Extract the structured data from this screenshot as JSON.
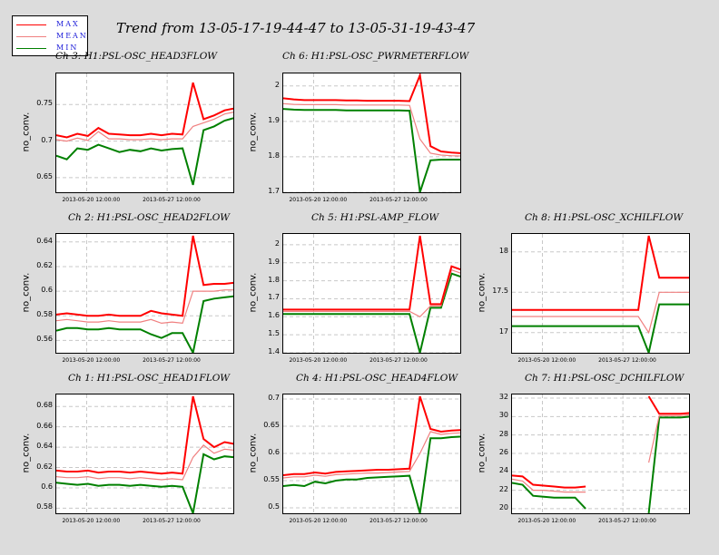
{
  "title": "Trend from 13-05-17-19-44-47 to 13-05-31-19-43-47",
  "legend": [
    {
      "label": "MAX",
      "color": "#ff0000"
    },
    {
      "label": "MEAN",
      "color": "#f08080"
    },
    {
      "label": "MIN",
      "color": "#008000"
    }
  ],
  "colors": {
    "max": "#ff0000",
    "mean": "#f08080",
    "min": "#008000",
    "grid": "#c8c8c8",
    "legend_text": "#1a1ad8"
  },
  "chart_data": [
    {
      "type": "line",
      "title": "Ch 3: H1:PSL-OSC_HEAD3FLOW",
      "ylabel": "no_conv.",
      "xticks": [
        "2013-05-20 12:00:00",
        "2013-05-27 12:00:00"
      ],
      "yticks": [
        "0.65",
        "0.7",
        "0.75"
      ],
      "ylim": [
        0.63,
        0.79
      ],
      "series": [
        {
          "name": "MAX",
          "values": [
            0.708,
            0.705,
            0.71,
            0.707,
            0.718,
            0.71,
            0.709,
            0.708,
            0.708,
            0.71,
            0.708,
            0.71,
            0.709,
            0.78,
            0.73,
            0.735,
            0.742,
            0.745
          ]
        },
        {
          "name": "MEAN",
          "values": [
            0.702,
            0.7,
            0.704,
            0.701,
            0.713,
            0.703,
            0.703,
            0.702,
            0.702,
            0.703,
            0.702,
            0.703,
            0.703,
            0.72,
            0.725,
            0.73,
            0.737,
            0.74
          ]
        },
        {
          "name": "MIN",
          "values": [
            0.68,
            0.675,
            0.69,
            0.688,
            0.695,
            0.69,
            0.685,
            0.688,
            0.686,
            0.69,
            0.687,
            0.689,
            0.69,
            0.64,
            0.715,
            0.72,
            0.728,
            0.732
          ]
        }
      ]
    },
    {
      "type": "line",
      "title": "Ch 6: H1:PSL-OSC_PWRMETERFLOW",
      "ylabel": "no_conv.",
      "xticks": [
        "2013-05-20 12:00:00",
        "2013-05-27 12:00:00"
      ],
      "yticks": [
        "1.7",
        "1.8",
        "1.9",
        "2"
      ],
      "ylim": [
        1.7,
        2.03
      ],
      "series": [
        {
          "name": "MAX",
          "values": [
            1.965,
            1.962,
            1.96,
            1.96,
            1.96,
            1.96,
            1.959,
            1.959,
            1.958,
            1.958,
            1.958,
            1.958,
            1.957,
            2.03,
            1.83,
            1.815,
            1.812,
            1.81
          ]
        },
        {
          "name": "MEAN",
          "values": [
            1.95,
            1.948,
            1.947,
            1.947,
            1.947,
            1.947,
            1.946,
            1.946,
            1.946,
            1.946,
            1.946,
            1.946,
            1.945,
            1.85,
            1.81,
            1.805,
            1.803,
            1.802
          ]
        },
        {
          "name": "MIN",
          "values": [
            1.935,
            1.933,
            1.932,
            1.932,
            1.932,
            1.932,
            1.931,
            1.931,
            1.931,
            1.931,
            1.931,
            1.931,
            1.93,
            1.7,
            1.79,
            1.792,
            1.792,
            1.792
          ]
        }
      ]
    },
    {
      "type": "line",
      "title": "Ch 2: H1:PSL-OSC_HEAD2FLOW",
      "ylabel": "no_conv.",
      "xticks": [
        "2013-05-20 12:00:00",
        "2013-05-27 12:00:00"
      ],
      "yticks": [
        "0.56",
        "0.58",
        "0.6",
        "0.62",
        "0.64"
      ],
      "ylim": [
        0.55,
        0.645
      ],
      "series": [
        {
          "name": "MAX",
          "values": [
            0.581,
            0.582,
            0.581,
            0.58,
            0.58,
            0.581,
            0.58,
            0.58,
            0.58,
            0.584,
            0.582,
            0.581,
            0.58,
            0.645,
            0.605,
            0.606,
            0.606,
            0.607
          ]
        },
        {
          "name": "MEAN",
          "values": [
            0.576,
            0.577,
            0.576,
            0.575,
            0.575,
            0.576,
            0.575,
            0.575,
            0.575,
            0.577,
            0.574,
            0.575,
            0.574,
            0.6,
            0.6,
            0.6,
            0.601,
            0.601
          ]
        },
        {
          "name": "MIN",
          "values": [
            0.568,
            0.57,
            0.57,
            0.569,
            0.569,
            0.57,
            0.569,
            0.569,
            0.569,
            0.565,
            0.562,
            0.566,
            0.566,
            0.55,
            0.592,
            0.594,
            0.595,
            0.596
          ]
        }
      ]
    },
    {
      "type": "line",
      "title": "Ch 5: H1:PSL-AMP_FLOW",
      "ylabel": "no_conv.",
      "xticks": [
        "2013-05-20 12:00:00",
        "2013-05-27 12:00:00"
      ],
      "yticks": [
        "1.4",
        "1.5",
        "1.6",
        "1.7",
        "1.8",
        "1.9",
        "2"
      ],
      "ylim": [
        1.4,
        2.05
      ],
      "series": [
        {
          "name": "MAX",
          "values": [
            1.64,
            1.64,
            1.64,
            1.64,
            1.64,
            1.64,
            1.64,
            1.64,
            1.64,
            1.64,
            1.64,
            1.64,
            1.64,
            2.05,
            1.67,
            1.67,
            1.88,
            1.86
          ]
        },
        {
          "name": "MEAN",
          "values": [
            1.63,
            1.63,
            1.63,
            1.63,
            1.63,
            1.63,
            1.63,
            1.63,
            1.63,
            1.63,
            1.63,
            1.63,
            1.63,
            1.6,
            1.66,
            1.66,
            1.86,
            1.84
          ]
        },
        {
          "name": "MIN",
          "values": [
            1.615,
            1.615,
            1.615,
            1.615,
            1.615,
            1.615,
            1.615,
            1.615,
            1.615,
            1.615,
            1.615,
            1.615,
            1.615,
            1.4,
            1.65,
            1.65,
            1.84,
            1.82
          ]
        }
      ]
    },
    {
      "type": "line",
      "title": "Ch 8: H1:PSL-OSC_XCHILFLOW",
      "ylabel": "no_conv.",
      "xticks": [
        "2013-05-20 12:00:00",
        "2013-05-27 12:00:00"
      ],
      "yticks": [
        "17",
        "17.5",
        "18"
      ],
      "ylim": [
        16.75,
        18.2
      ],
      "series": [
        {
          "name": "MAX",
          "values": [
            17.28,
            17.28,
            17.28,
            17.28,
            17.28,
            17.28,
            17.28,
            17.28,
            17.28,
            17.28,
            17.28,
            17.28,
            17.28,
            18.2,
            17.68,
            17.68,
            17.68,
            17.68
          ]
        },
        {
          "name": "MEAN",
          "values": [
            17.2,
            17.2,
            17.2,
            17.2,
            17.2,
            17.2,
            17.2,
            17.2,
            17.2,
            17.2,
            17.2,
            17.2,
            17.2,
            17.0,
            17.5,
            17.5,
            17.5,
            17.5
          ]
        },
        {
          "name": "MIN",
          "values": [
            17.08,
            17.08,
            17.08,
            17.08,
            17.08,
            17.08,
            17.08,
            17.08,
            17.08,
            17.08,
            17.08,
            17.08,
            17.08,
            16.75,
            17.35,
            17.35,
            17.35,
            17.35
          ]
        }
      ]
    },
    {
      "type": "line",
      "title": "Ch 1: H1:PSL-OSC_HEAD1FLOW",
      "ylabel": "no_conv.",
      "xticks": [
        "2013-05-20 12:00:00",
        "2013-05-27 12:00:00"
      ],
      "yticks": [
        "0.58",
        "0.6",
        "0.62",
        "0.64",
        "0.66",
        "0.68"
      ],
      "ylim": [
        0.575,
        0.69
      ],
      "series": [
        {
          "name": "MAX",
          "values": [
            0.617,
            0.616,
            0.616,
            0.617,
            0.615,
            0.616,
            0.616,
            0.615,
            0.616,
            0.615,
            0.614,
            0.615,
            0.614,
            0.69,
            0.648,
            0.64,
            0.645,
            0.643
          ]
        },
        {
          "name": "MEAN",
          "values": [
            0.611,
            0.61,
            0.61,
            0.611,
            0.609,
            0.61,
            0.61,
            0.609,
            0.61,
            0.609,
            0.608,
            0.609,
            0.608,
            0.63,
            0.642,
            0.634,
            0.638,
            0.637
          ]
        },
        {
          "name": "MIN",
          "values": [
            0.605,
            0.604,
            0.603,
            0.604,
            0.602,
            0.603,
            0.603,
            0.602,
            0.603,
            0.602,
            0.601,
            0.602,
            0.601,
            0.575,
            0.633,
            0.628,
            0.631,
            0.63
          ]
        }
      ]
    },
    {
      "type": "line",
      "title": "Ch 4: H1:PSL-OSC_HEAD4FLOW",
      "ylabel": "no_conv.",
      "xticks": [
        "2013-05-20 12:00:00",
        "2013-05-27 12:00:00"
      ],
      "yticks": [
        "0.5",
        "0.55",
        "0.6",
        "0.65",
        "0.7"
      ],
      "ylim": [
        0.49,
        0.705
      ],
      "series": [
        {
          "name": "MAX",
          "values": [
            0.56,
            0.562,
            0.562,
            0.565,
            0.563,
            0.566,
            0.567,
            0.568,
            0.569,
            0.57,
            0.57,
            0.571,
            0.572,
            0.705,
            0.645,
            0.64,
            0.642,
            0.643
          ]
        },
        {
          "name": "MEAN",
          "values": [
            0.555,
            0.557,
            0.557,
            0.56,
            0.558,
            0.561,
            0.562,
            0.563,
            0.564,
            0.564,
            0.565,
            0.566,
            0.567,
            0.6,
            0.64,
            0.635,
            0.637,
            0.638
          ]
        },
        {
          "name": "MIN",
          "values": [
            0.54,
            0.542,
            0.54,
            0.548,
            0.545,
            0.55,
            0.552,
            0.552,
            0.555,
            0.556,
            0.557,
            0.558,
            0.559,
            0.49,
            0.628,
            0.628,
            0.63,
            0.631
          ]
        }
      ]
    },
    {
      "type": "line",
      "title": "Ch 7: H1:PSL-OSC_DCHILFLOW",
      "ylabel": "no_conv.",
      "xticks": [
        "2013-05-20 12:00:00",
        "2013-05-27 12:00:00"
      ],
      "yticks": [
        "20",
        "22",
        "24",
        "26",
        "28",
        "30",
        "32"
      ],
      "ylim": [
        19.5,
        32.2
      ],
      "series": [
        {
          "name": "MAX",
          "values": [
            23.6,
            23.5,
            22.6,
            22.5,
            22.4,
            22.3,
            22.3,
            22.4,
            null,
            null,
            null,
            null,
            null,
            32.2,
            30.3,
            30.3,
            30.3,
            30.4
          ]
        },
        {
          "name": "MEAN",
          "values": [
            23.2,
            23.0,
            22.0,
            22.0,
            21.9,
            21.8,
            21.8,
            21.8,
            null,
            null,
            null,
            null,
            null,
            25.0,
            30.1,
            30.1,
            30.1,
            30.2
          ]
        },
        {
          "name": "MIN",
          "values": [
            22.8,
            22.6,
            21.4,
            21.3,
            21.2,
            21.2,
            21.2,
            20.0,
            null,
            null,
            null,
            null,
            null,
            19.5,
            29.9,
            29.9,
            29.9,
            30.0
          ]
        }
      ]
    }
  ]
}
